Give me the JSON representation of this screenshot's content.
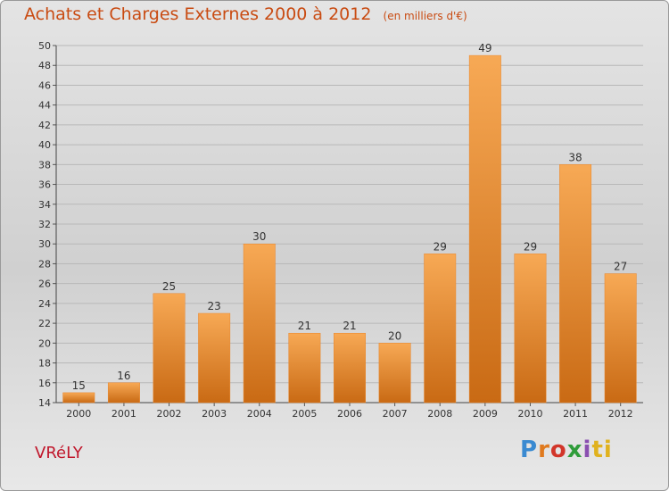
{
  "header": {
    "title": "Achats et Charges Externes 2000 à 2012",
    "unit": "(en milliers d'€)"
  },
  "commune": "VRéLY",
  "logo": {
    "text": "Proxiti",
    "letters": [
      "P",
      "r",
      "o",
      "x",
      "i",
      "ti"
    ]
  },
  "colors": {
    "bar": "#f0922b",
    "bar_dark": "#c96a14",
    "title": "#c94b12",
    "commune": "#c0152a"
  },
  "chart_data": {
    "type": "bar",
    "categories": [
      "2000",
      "2001",
      "2002",
      "2003",
      "2004",
      "2005",
      "2006",
      "2007",
      "2008",
      "2009",
      "2010",
      "2011",
      "2012"
    ],
    "values": [
      15,
      16,
      25,
      23,
      30,
      21,
      21,
      20,
      29,
      49,
      29,
      38,
      27
    ],
    "ylim": [
      14,
      50
    ],
    "yticks": [
      14,
      16,
      18,
      20,
      22,
      24,
      26,
      28,
      30,
      32,
      34,
      36,
      38,
      40,
      42,
      44,
      46,
      48,
      50
    ],
    "title": "Achats et Charges Externes 2000 à 2012",
    "xlabel": "",
    "ylabel": "",
    "grid": true
  }
}
